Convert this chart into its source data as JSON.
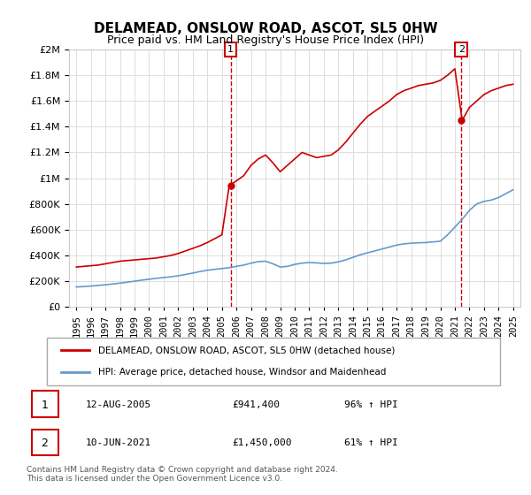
{
  "title": "DELAMEAD, ONSLOW ROAD, ASCOT, SL5 0HW",
  "subtitle": "Price paid vs. HM Land Registry's House Price Index (HPI)",
  "legend_line1": "DELAMEAD, ONSLOW ROAD, ASCOT, SL5 0HW (detached house)",
  "legend_line2": "HPI: Average price, detached house, Windsor and Maidenhead",
  "sale1_label": "1",
  "sale1_date": "12-AUG-2005",
  "sale1_price": "£941,400",
  "sale1_hpi": "96% ↑ HPI",
  "sale2_label": "2",
  "sale2_date": "10-JUN-2021",
  "sale2_price": "£1,450,000",
  "sale2_hpi": "61% ↑ HPI",
  "footer": "Contains HM Land Registry data © Crown copyright and database right 2024.\nThis data is licensed under the Open Government Licence v3.0.",
  "red_color": "#cc0000",
  "blue_color": "#6699cc",
  "sale1_x": 2005.6,
  "sale2_x": 2021.45,
  "ylim": [
    0,
    2000000
  ],
  "xlim_start": 1994.5,
  "xlim_end": 2025.5,
  "red_line": {
    "x": [
      1995,
      1995.5,
      1996,
      1996.5,
      1997,
      1997.5,
      1998,
      1998.5,
      1999,
      1999.5,
      2000,
      2000.5,
      2001,
      2001.5,
      2002,
      2002.5,
      2003,
      2003.5,
      2004,
      2004.5,
      2005,
      2005.5,
      2006,
      2006.5,
      2007,
      2007.5,
      2008,
      2008.5,
      2009,
      2009.5,
      2010,
      2010.5,
      2011,
      2011.5,
      2012,
      2012.5,
      2013,
      2013.5,
      2014,
      2014.5,
      2015,
      2015.5,
      2016,
      2016.5,
      2017,
      2017.5,
      2018,
      2018.5,
      2019,
      2019.5,
      2020,
      2020.5,
      2021,
      2021.5,
      2022,
      2022.5,
      2023,
      2023.5,
      2024,
      2024.5,
      2025
    ],
    "y": [
      310000,
      315000,
      320000,
      325000,
      335000,
      345000,
      355000,
      360000,
      365000,
      370000,
      375000,
      380000,
      390000,
      400000,
      415000,
      435000,
      455000,
      475000,
      500000,
      530000,
      560000,
      941400,
      980000,
      1020000,
      1100000,
      1150000,
      1180000,
      1120000,
      1050000,
      1100000,
      1150000,
      1200000,
      1180000,
      1160000,
      1170000,
      1180000,
      1220000,
      1280000,
      1350000,
      1420000,
      1480000,
      1520000,
      1560000,
      1600000,
      1650000,
      1680000,
      1700000,
      1720000,
      1730000,
      1740000,
      1760000,
      1800000,
      1850000,
      1450000,
      1550000,
      1600000,
      1650000,
      1680000,
      1700000,
      1720000,
      1730000
    ]
  },
  "blue_line": {
    "x": [
      1995,
      1995.5,
      1996,
      1996.5,
      1997,
      1997.5,
      1998,
      1998.5,
      1999,
      1999.5,
      2000,
      2000.5,
      2001,
      2001.5,
      2002,
      2002.5,
      2003,
      2003.5,
      2004,
      2004.5,
      2005,
      2005.5,
      2006,
      2006.5,
      2007,
      2007.5,
      2008,
      2008.5,
      2009,
      2009.5,
      2010,
      2010.5,
      2011,
      2011.5,
      2012,
      2012.5,
      2013,
      2013.5,
      2014,
      2014.5,
      2015,
      2015.5,
      2016,
      2016.5,
      2017,
      2017.5,
      2018,
      2018.5,
      2019,
      2019.5,
      2020,
      2020.5,
      2021,
      2021.5,
      2022,
      2022.5,
      2023,
      2023.5,
      2024,
      2024.5,
      2025
    ],
    "y": [
      155000,
      158000,
      162000,
      167000,
      172000,
      178000,
      185000,
      192000,
      200000,
      208000,
      215000,
      222000,
      228000,
      234000,
      242000,
      252000,
      263000,
      275000,
      285000,
      292000,
      298000,
      305000,
      315000,
      325000,
      340000,
      352000,
      355000,
      335000,
      310000,
      315000,
      330000,
      340000,
      345000,
      342000,
      338000,
      340000,
      350000,
      365000,
      385000,
      405000,
      420000,
      435000,
      450000,
      465000,
      480000,
      490000,
      495000,
      498000,
      500000,
      505000,
      510000,
      560000,
      620000,
      680000,
      750000,
      800000,
      820000,
      830000,
      850000,
      880000,
      910000
    ]
  }
}
